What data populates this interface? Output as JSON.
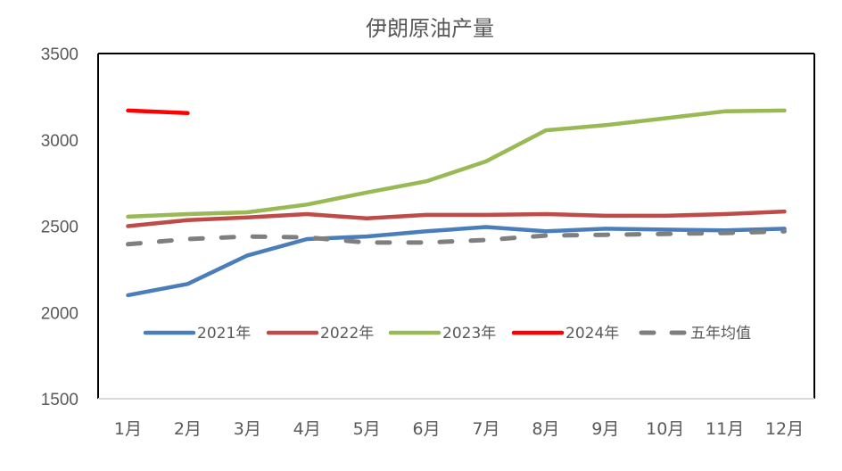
{
  "chart_data": {
    "type": "line",
    "title": "伊朗原油产量",
    "xlabel": "",
    "ylabel": "",
    "categories": [
      "1月",
      "2月",
      "3月",
      "4月",
      "5月",
      "6月",
      "7月",
      "8月",
      "9月",
      "10月",
      "11月",
      "12月"
    ],
    "ylim": [
      1500,
      3500
    ],
    "yticks": [
      1500,
      2000,
      2500,
      3000,
      3500
    ],
    "grid": false,
    "legend_position": "inside-bottom",
    "series": [
      {
        "name": "2021年",
        "color": "#4a7ebb",
        "dash": false,
        "values": [
          2100,
          2165,
          2330,
          2425,
          2440,
          2470,
          2495,
          2470,
          2485,
          2480,
          2475,
          2485
        ]
      },
      {
        "name": "2022年",
        "color": "#be4b48",
        "dash": false,
        "values": [
          2500,
          2535,
          2550,
          2570,
          2545,
          2565,
          2565,
          2570,
          2560,
          2560,
          2570,
          2585
        ]
      },
      {
        "name": "2023年",
        "color": "#98b954",
        "dash": false,
        "values": [
          2555,
          2570,
          2580,
          2625,
          2695,
          2760,
          2875,
          3055,
          3085,
          3125,
          3165,
          3170
        ]
      },
      {
        "name": "2024年",
        "color": "#ff0000",
        "dash": false,
        "values": [
          3170,
          3155,
          null,
          null,
          null,
          null,
          null,
          null,
          null,
          null,
          null,
          null
        ]
      },
      {
        "name": "五年均值",
        "color": "#7f7f7f",
        "dash": true,
        "values": [
          2395,
          2425,
          2440,
          2435,
          2405,
          2405,
          2420,
          2445,
          2450,
          2455,
          2460,
          2470
        ]
      }
    ]
  }
}
